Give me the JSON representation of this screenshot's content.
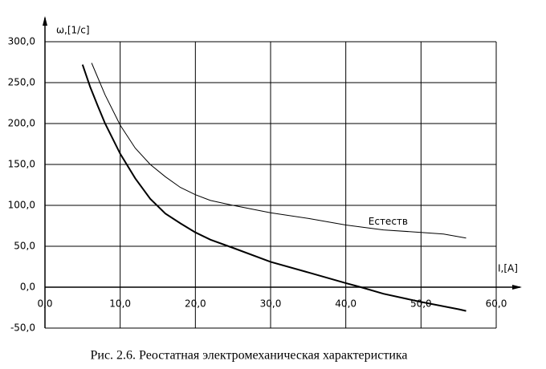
{
  "chart_data": {
    "type": "line",
    "caption": "Рис. 2.6. Реостатная электромеханическая характеристика",
    "y_label": "ω,[1/c]",
    "x_label": "I,[A]",
    "series": [
      {
        "name": "Естеств",
        "color": "#000000",
        "x": [
          6.2,
          8,
          10,
          12,
          14,
          16,
          18,
          20,
          22,
          25,
          30,
          35,
          40,
          45,
          50,
          53,
          56
        ],
        "values": [
          274,
          235,
          198,
          170,
          150,
          135,
          122,
          113,
          106,
          100,
          91,
          84,
          76,
          70,
          67,
          65,
          60
        ]
      },
      {
        "color": "#000000",
        "x": [
          5,
          6,
          7,
          8,
          10,
          12,
          14,
          16,
          18,
          20,
          22,
          25,
          30,
          35,
          40,
          42,
          45,
          50,
          55,
          56
        ],
        "values": [
          272,
          245,
          222,
          200,
          163,
          133,
          108,
          90,
          78,
          67,
          58,
          48,
          31,
          18,
          5,
          0,
          -8,
          -18,
          -27,
          -29
        ]
      }
    ],
    "xlim": [
      0,
      60
    ],
    "xticks": [
      {
        "value": 0,
        "label": "0,0"
      },
      {
        "value": 10,
        "label": "10,0"
      },
      {
        "value": 20,
        "label": "20,0"
      },
      {
        "value": 30,
        "label": "30,0"
      },
      {
        "value": 40,
        "label": "40,0"
      },
      {
        "value": 50,
        "label": "50,0"
      },
      {
        "value": 60,
        "label": "60,0"
      }
    ],
    "ylim": [
      -50,
      300
    ],
    "yticks": [
      {
        "value": -50,
        "label": "-50,0"
      },
      {
        "value": 0,
        "label": "0,0"
      },
      {
        "value": 50,
        "label": "50,0"
      },
      {
        "value": 100,
        "label": "100,0"
      },
      {
        "value": 150,
        "label": "150,0"
      },
      {
        "value": 200,
        "label": "200,0"
      },
      {
        "value": 250,
        "label": "250,0"
      },
      {
        "value": 300,
        "label": "300,0"
      }
    ],
    "grid": true
  }
}
